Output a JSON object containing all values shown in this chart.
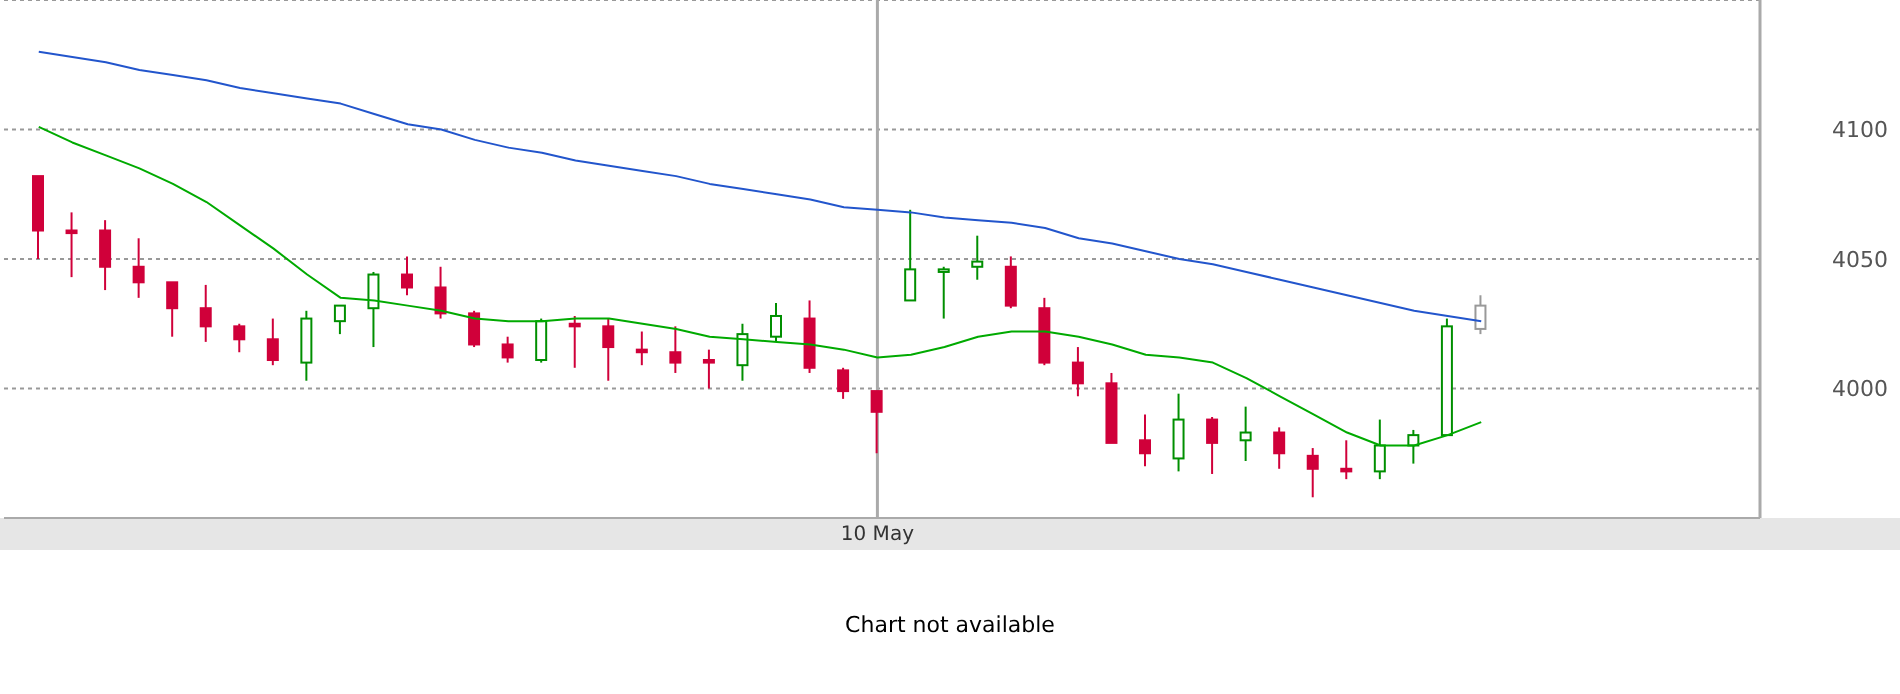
{
  "chart_data": {
    "type": "candlestick",
    "categories": [
      null,
      null,
      null,
      null,
      null,
      null,
      null,
      null,
      null,
      null,
      null,
      null,
      null,
      null,
      null,
      null,
      null,
      null,
      null,
      null,
      null,
      null,
      null,
      null,
      null,
      "10 May",
      null,
      null,
      null,
      null,
      null,
      null,
      null,
      null,
      null,
      null,
      null,
      null,
      null,
      null,
      null,
      null,
      null,
      null
    ],
    "ohlc": [
      [
        4082,
        4082,
        4050,
        4061
      ],
      [
        4061,
        4068,
        4043,
        4060
      ],
      [
        4061,
        4065,
        4038,
        4047
      ],
      [
        4047,
        4058,
        4035,
        4041
      ],
      [
        4041,
        4041,
        4020,
        4031
      ],
      [
        4031,
        4040,
        4018,
        4024
      ],
      [
        4024,
        4025,
        4014,
        4019
      ],
      [
        4019,
        4027,
        4009,
        4011
      ],
      [
        4010,
        4030,
        4003,
        4027
      ],
      [
        4026,
        4032,
        4021,
        4032
      ],
      [
        4031,
        4045,
        4016,
        4044
      ],
      [
        4044,
        4051,
        4036,
        4039
      ],
      [
        4039,
        4047,
        4027,
        4029
      ],
      [
        4029,
        4030,
        4016,
        4017
      ],
      [
        4017,
        4020,
        4010,
        4012
      ],
      [
        4011,
        4027,
        4010,
        4026
      ],
      [
        4025,
        4028,
        4008,
        4024
      ],
      [
        4024,
        4027,
        4003,
        4016
      ],
      [
        4015,
        4022,
        4009,
        4014
      ],
      [
        4014,
        4024,
        4006,
        4010
      ],
      [
        4011,
        4015,
        4000,
        4010
      ],
      [
        4009,
        4025,
        4003,
        4021
      ],
      [
        4020,
        4033,
        4018,
        4028
      ],
      [
        4027,
        4034,
        4006,
        4008
      ],
      [
        4007,
        4008,
        3996,
        3999
      ],
      [
        3999,
        3999,
        3975,
        3991
      ],
      [
        4034,
        4069,
        4034,
        4046
      ],
      [
        4045,
        4047,
        4027,
        4046
      ],
      [
        4047,
        4059,
        4042,
        4049
      ],
      [
        4047,
        4051,
        4031,
        4032
      ],
      [
        4031,
        4035,
        4009,
        4010
      ],
      [
        4010,
        4016,
        3997,
        4002
      ],
      [
        4002,
        4006,
        3979,
        3979
      ],
      [
        3980,
        3990,
        3970,
        3975
      ],
      [
        3973,
        3998,
        3968,
        3988
      ],
      [
        3988,
        3989,
        3967,
        3979
      ],
      [
        3980,
        3993,
        3972,
        3983
      ],
      [
        3983,
        3985,
        3969,
        3975
      ],
      [
        3974,
        3977,
        3958,
        3969
      ],
      [
        3969,
        3980,
        3965,
        3968
      ],
      [
        3968,
        3988,
        3965,
        3978
      ],
      [
        3978,
        3984,
        3971,
        3982
      ],
      [
        3982,
        4027,
        3982,
        4024
      ],
      [
        4023,
        4036,
        4021,
        4032
      ]
    ],
    "colors": [
      "#d0003a",
      "#d0003a",
      "#d0003a",
      "#d0003a",
      "#d0003a",
      "#d0003a",
      "#d0003a",
      "#d0003a",
      "#008f00",
      "#008f00",
      "#008f00",
      "#d0003a",
      "#d0003a",
      "#d0003a",
      "#d0003a",
      "#008f00",
      "#d0003a",
      "#d0003a",
      "#d0003a",
      "#d0003a",
      "#d0003a",
      "#008f00",
      "#008f00",
      "#d0003a",
      "#d0003a",
      "#d0003a",
      "#008f00",
      "#008f00",
      "#008f00",
      "#d0003a",
      "#d0003a",
      "#d0003a",
      "#d0003a",
      "#d0003a",
      "#008f00",
      "#d0003a",
      "#008f00",
      "#d0003a",
      "#d0003a",
      "#d0003a",
      "#008f00",
      "#008f00",
      "#008f00",
      "#999999"
    ],
    "series": [
      {
        "type": "line",
        "color": "#2255cc",
        "values": [
          4130,
          4128,
          4126,
          4123,
          4121,
          4119,
          4116,
          4114,
          4112,
          4110,
          4106,
          4102,
          4100,
          4096,
          4093,
          4091,
          4088,
          4086,
          4084,
          4082,
          4079,
          4077,
          4075,
          4073,
          4070,
          4069,
          4068,
          4066,
          4065,
          4064,
          4062,
          4058,
          4056,
          4053,
          4050,
          4048,
          4045,
          4042,
          4039,
          4036,
          4033,
          4030,
          4028,
          4026
        ]
      },
      {
        "type": "line",
        "color": "#00aa00",
        "values": [
          4101,
          4095,
          4090,
          4085,
          4079,
          4072,
          4063,
          4054,
          4044,
          4035,
          4034,
          4032,
          4030,
          4027,
          4026,
          4026,
          4027,
          4027,
          4025,
          4023,
          4020,
          4019,
          4018,
          4017,
          4015,
          4012,
          4013,
          4016,
          4020,
          4022,
          4022,
          4020,
          4017,
          4013,
          4012,
          4010,
          4004,
          3997,
          3990,
          3983,
          3978,
          3978,
          3982,
          3987
        ]
      }
    ],
    "ylim": [
      3950,
      4150
    ],
    "yticks": [
      4000,
      4050,
      4100
    ],
    "grid": true,
    "marker": "none",
    "line_style": "solid",
    "annotations": [
      "Chart not available"
    ]
  }
}
